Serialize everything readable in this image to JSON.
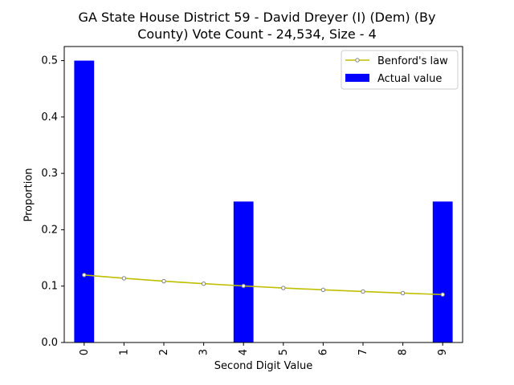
{
  "chart_data": {
    "type": "bar",
    "title_line1": "GA State House District 59 - David Dreyer (I) (Dem) (By",
    "title_line2": "County) Vote Count - 24,534, Size - 4",
    "xlabel": "Second Digit Value",
    "ylabel": "Proportion",
    "categories": [
      "0",
      "1",
      "2",
      "3",
      "4",
      "5",
      "6",
      "7",
      "8",
      "9"
    ],
    "yticks": [
      "0.0",
      "0.1",
      "0.2",
      "0.3",
      "0.4",
      "0.5"
    ],
    "ylim": [
      0,
      0.525
    ],
    "grid": false,
    "legend_position": "top-right",
    "series": [
      {
        "name": "Benford's law",
        "kind": "line",
        "color": "#bfbf00",
        "marker_color": "#808080",
        "values": [
          0.1197,
          0.1139,
          0.1088,
          0.1043,
          0.1003,
          0.0967,
          0.0934,
          0.0904,
          0.0876,
          0.085
        ]
      },
      {
        "name": "Actual value",
        "kind": "bar",
        "color": "#0000ff",
        "values": [
          0.5,
          0,
          0,
          0,
          0.25,
          0,
          0,
          0,
          0,
          0.25
        ]
      }
    ]
  }
}
